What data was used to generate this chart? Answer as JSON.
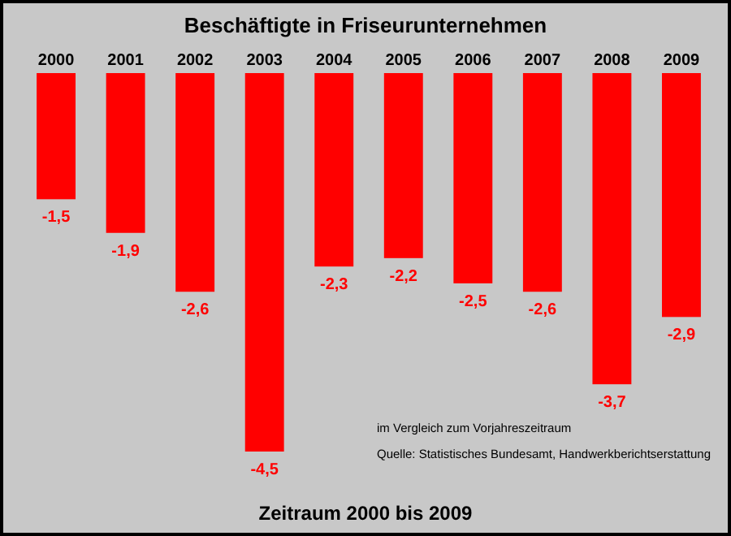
{
  "chart_data": {
    "type": "bar",
    "title": "Beschäftigte in Friseurunternehmen",
    "xlabel": "Zeitraum 2000 bis 2009",
    "categories": [
      "2000",
      "2001",
      "2002",
      "2003",
      "2004",
      "2005",
      "2006",
      "2007",
      "2008",
      "2009"
    ],
    "values": [
      -1.5,
      -1.9,
      -2.6,
      -4.5,
      -2.3,
      -2.2,
      -2.5,
      -2.6,
      -3.7,
      -2.9
    ],
    "color": "#ff0000",
    "value_labels": [
      "-1,5",
      "-1,9",
      "-2,6",
      "-4,5",
      "-2,3",
      "-2,2",
      "-2,5",
      "-2,6",
      "-3,7",
      "-2,9"
    ],
    "annotations": [
      "im Vergleich zum Vorjahreszeitraum",
      "Quelle: Statistisches Bundesamt, Handwerkberichtserstattung"
    ]
  }
}
